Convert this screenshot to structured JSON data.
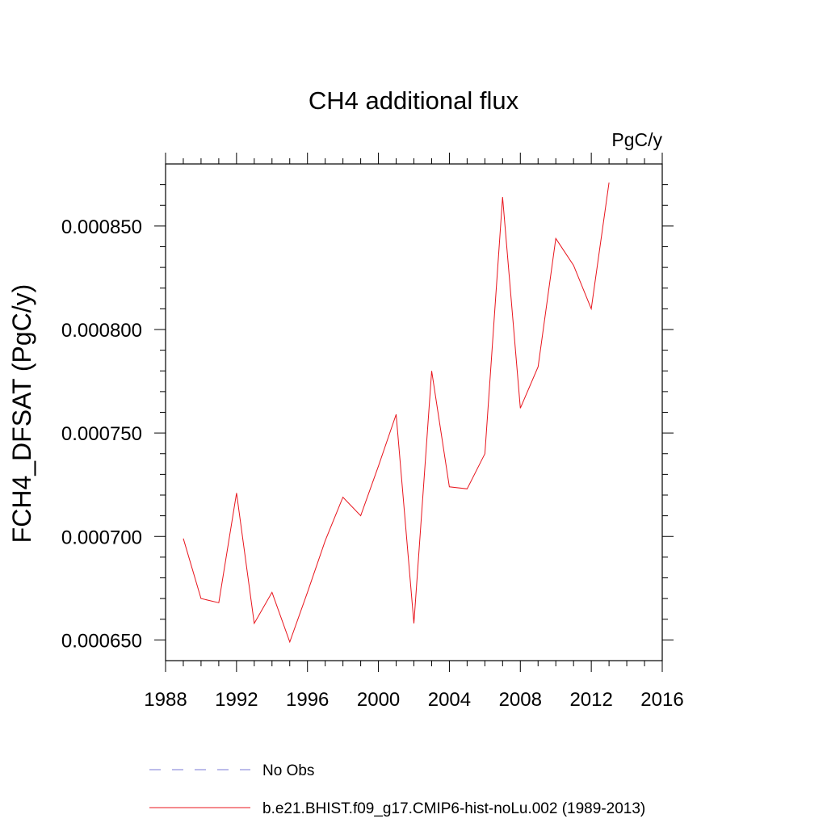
{
  "chart_data": {
    "type": "line",
    "title": "CH4 additional flux",
    "units": "PgC/y",
    "ylabel": "FCH4_DFSAT  (PgC/y)",
    "xlabel": "",
    "xlim": [
      1988,
      2016
    ],
    "ylim": [
      0.00064,
      0.00088
    ],
    "x_ticks": [
      1988,
      1992,
      1996,
      2000,
      2004,
      2008,
      2012,
      2016
    ],
    "x_tick_labels": [
      "1988",
      "1992",
      "1996",
      "2000",
      "2004",
      "2008",
      "2012",
      "2016"
    ],
    "y_ticks": [
      0.00065,
      0.0007,
      0.00075,
      0.0008,
      0.00085
    ],
    "y_tick_labels": [
      "0.000650",
      "0.000700",
      "0.000750",
      "0.000800",
      "0.000850"
    ],
    "grid": false,
    "legend_position": "bottom",
    "series": [
      {
        "name": "b.e21.BHIST.f09_g17.CMIP6-hist-noLu.002 (1989-2013)",
        "color": "#e8141c",
        "style": "solid",
        "x": [
          1989,
          1990,
          1991,
          1992,
          1993,
          1994,
          1995,
          1996,
          1997,
          1998,
          1999,
          2000,
          2001,
          2002,
          2003,
          2004,
          2005,
          2006,
          2007,
          2008,
          2009,
          2010,
          2011,
          2012,
          2013
        ],
        "values": [
          0.000699,
          0.00067,
          0.000668,
          0.000721,
          0.000658,
          0.000673,
          0.000649,
          0.000673,
          0.000698,
          0.000719,
          0.00071,
          0.000734,
          0.000759,
          0.000658,
          0.00078,
          0.000724,
          0.000723,
          0.00074,
          0.000864,
          0.000762,
          0.000782,
          0.000844,
          0.000831,
          0.00081,
          0.000871
        ]
      },
      {
        "name": "No Obs",
        "color": "#7a7ad6",
        "style": "dashed",
        "x": [],
        "values": []
      }
    ]
  }
}
